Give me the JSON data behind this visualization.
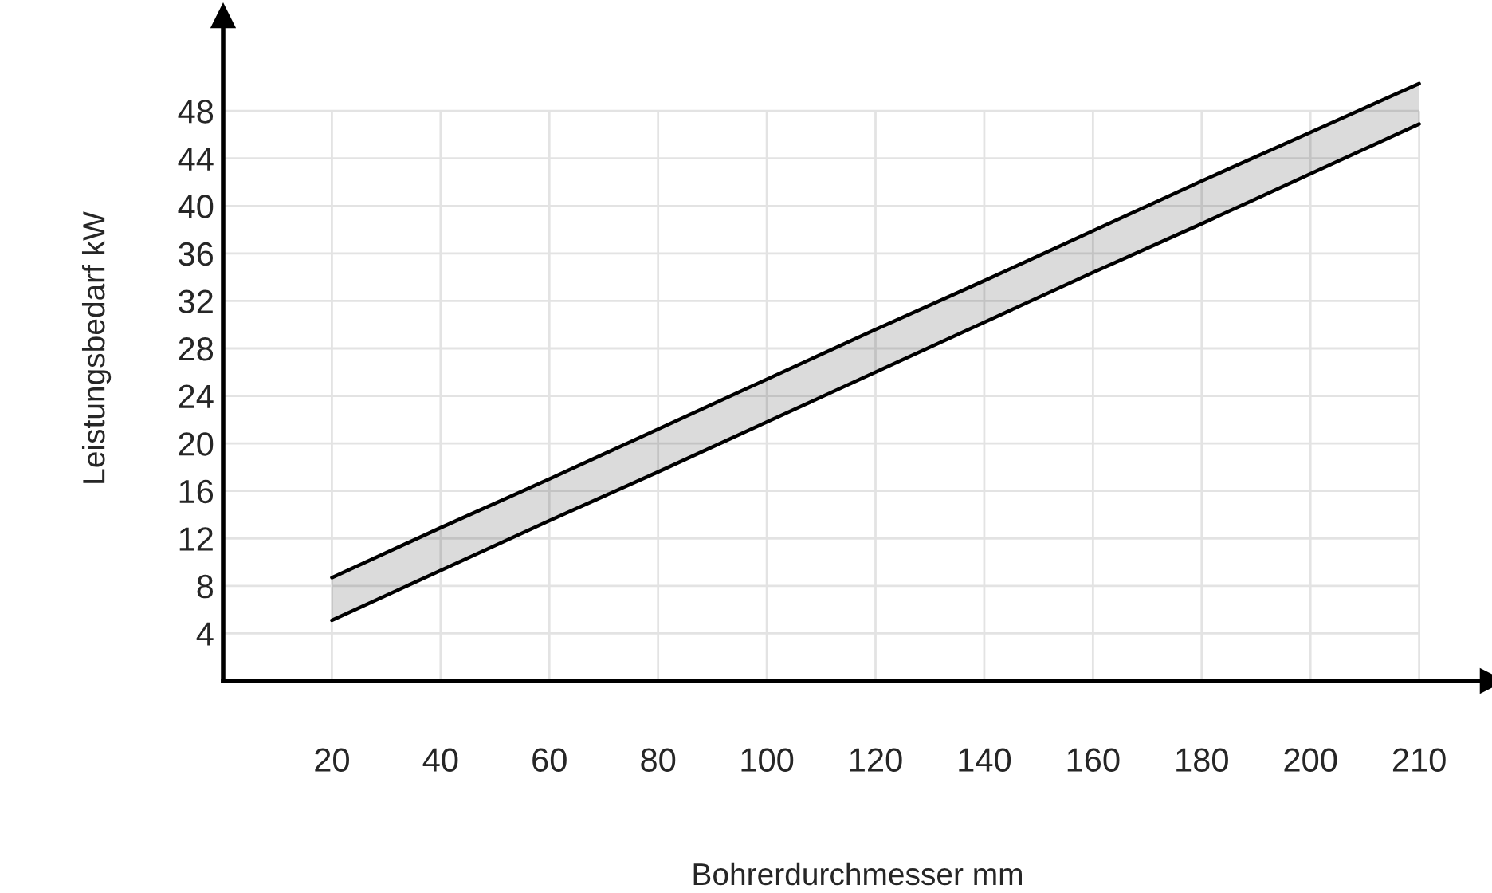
{
  "chart_data": {
    "type": "line",
    "xlabel": "Bohrerdurchmesser mm",
    "ylabel": "Leistungsbedarf kW",
    "categories": [
      "20",
      "40",
      "60",
      "80",
      "100",
      "120",
      "140",
      "160",
      "180",
      "200",
      "210"
    ],
    "series": [
      {
        "color": "#000000",
        "values": [
          8.7,
          12.9,
          17.0,
          21.2,
          25.4,
          29.6,
          33.7,
          37.9,
          42.1,
          46.2,
          50.3
        ],
        "lower": [
          5.1,
          9.3,
          13.5,
          17.6,
          21.8,
          26.0,
          30.2,
          34.4,
          38.5,
          42.7,
          46.9
        ],
        "upper": [
          8.7,
          12.9,
          17.0,
          21.2,
          25.4,
          29.6,
          33.7,
          37.9,
          42.1,
          46.2,
          50.3
        ]
      },
      {
        "color": "#000000",
        "values": [
          5.1,
          9.3,
          13.5,
          17.6,
          21.8,
          26.0,
          30.2,
          34.4,
          38.5,
          42.7,
          46.9
        ]
      }
    ],
    "ylim": [
      0,
      56
    ],
    "yticks": [
      4,
      8,
      12,
      16,
      20,
      24,
      28,
      32,
      36,
      40,
      44,
      48
    ],
    "grid": true,
    "legend": false,
    "marker": "none",
    "line_style": "solid"
  }
}
